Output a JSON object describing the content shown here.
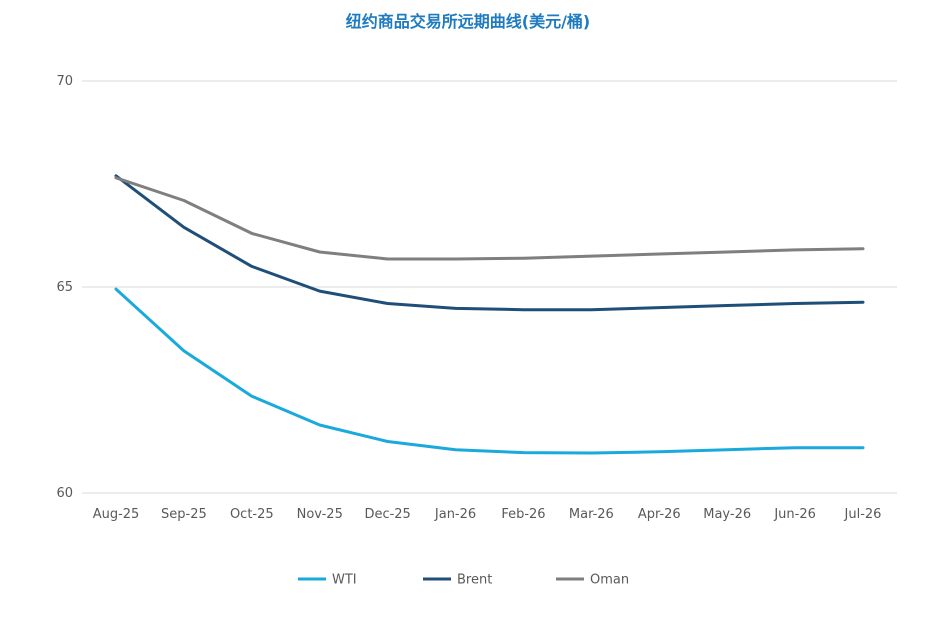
{
  "chart_data": {
    "type": "line",
    "title": "纽约商品交易所远期曲线(美元/桶)",
    "categories": [
      "Aug-25",
      "Sep-25",
      "Oct-25",
      "Nov-25",
      "Dec-25",
      "Jan-26",
      "Feb-26",
      "Mar-26",
      "Apr-26",
      "May-26",
      "Jun-26",
      "Jul-26"
    ],
    "series": [
      {
        "name": "WTI",
        "color": "#1aa9dc",
        "values": [
          64.95,
          63.45,
          62.35,
          61.65,
          61.25,
          61.05,
          60.98,
          60.97,
          61.0,
          61.05,
          61.1,
          61.1
        ]
      },
      {
        "name": "Brent",
        "color": "#1f4e79",
        "values": [
          67.7,
          66.45,
          65.5,
          64.9,
          64.6,
          64.48,
          64.45,
          64.45,
          64.5,
          64.55,
          64.6,
          64.63
        ]
      },
      {
        "name": "Oman",
        "color": "#7f7f7f",
        "values": [
          67.65,
          67.1,
          66.3,
          65.85,
          65.68,
          65.68,
          65.7,
          65.75,
          65.8,
          65.85,
          65.9,
          65.93
        ]
      }
    ],
    "ylim": [
      60,
      70
    ],
    "yticks": [
      60,
      65,
      70
    ],
    "grid": true,
    "legend": "bottom",
    "colors": {
      "title": "#1f7bbf",
      "grid": "#d9d9d9",
      "axis": "#d9d9d9"
    }
  }
}
